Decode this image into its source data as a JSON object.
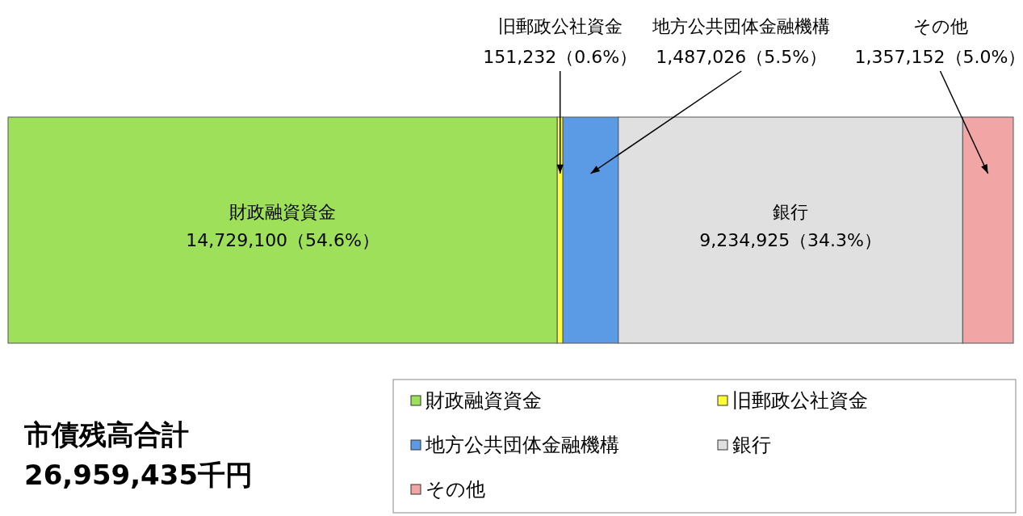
{
  "chart_data": {
    "type": "bar",
    "orientation": "horizontal",
    "stacked": true,
    "categories": [
      null
    ],
    "series": [
      {
        "name": "財政融資資金",
        "color": "#9ee05a",
        "values": [
          14729100
        ],
        "value_labels": [
          "14,729,100（54.6%）"
        ]
      },
      {
        "name": "旧郵政公社資金",
        "color": "#ffff33",
        "values": [
          151232
        ],
        "value_labels": [
          "151,232（0.6%）"
        ]
      },
      {
        "name": "地方公共団体金融機構",
        "color": "#5b9be6",
        "values": [
          1487026
        ],
        "value_labels": [
          "1,487,026（5.5%）"
        ]
      },
      {
        "name": "銀行",
        "color": "#e0e0e0",
        "values": [
          9234925
        ],
        "value_labels": [
          "9,234,925（34.3%）"
        ]
      },
      {
        "name": "その他",
        "color": "#f2a5a5",
        "values": [
          1357152
        ],
        "value_labels": [
          "1,357,152（5.0%）"
        ]
      }
    ],
    "legend": "bottom right",
    "annotations": [
      "市債残高合計",
      "26,959,435千円"
    ]
  }
}
